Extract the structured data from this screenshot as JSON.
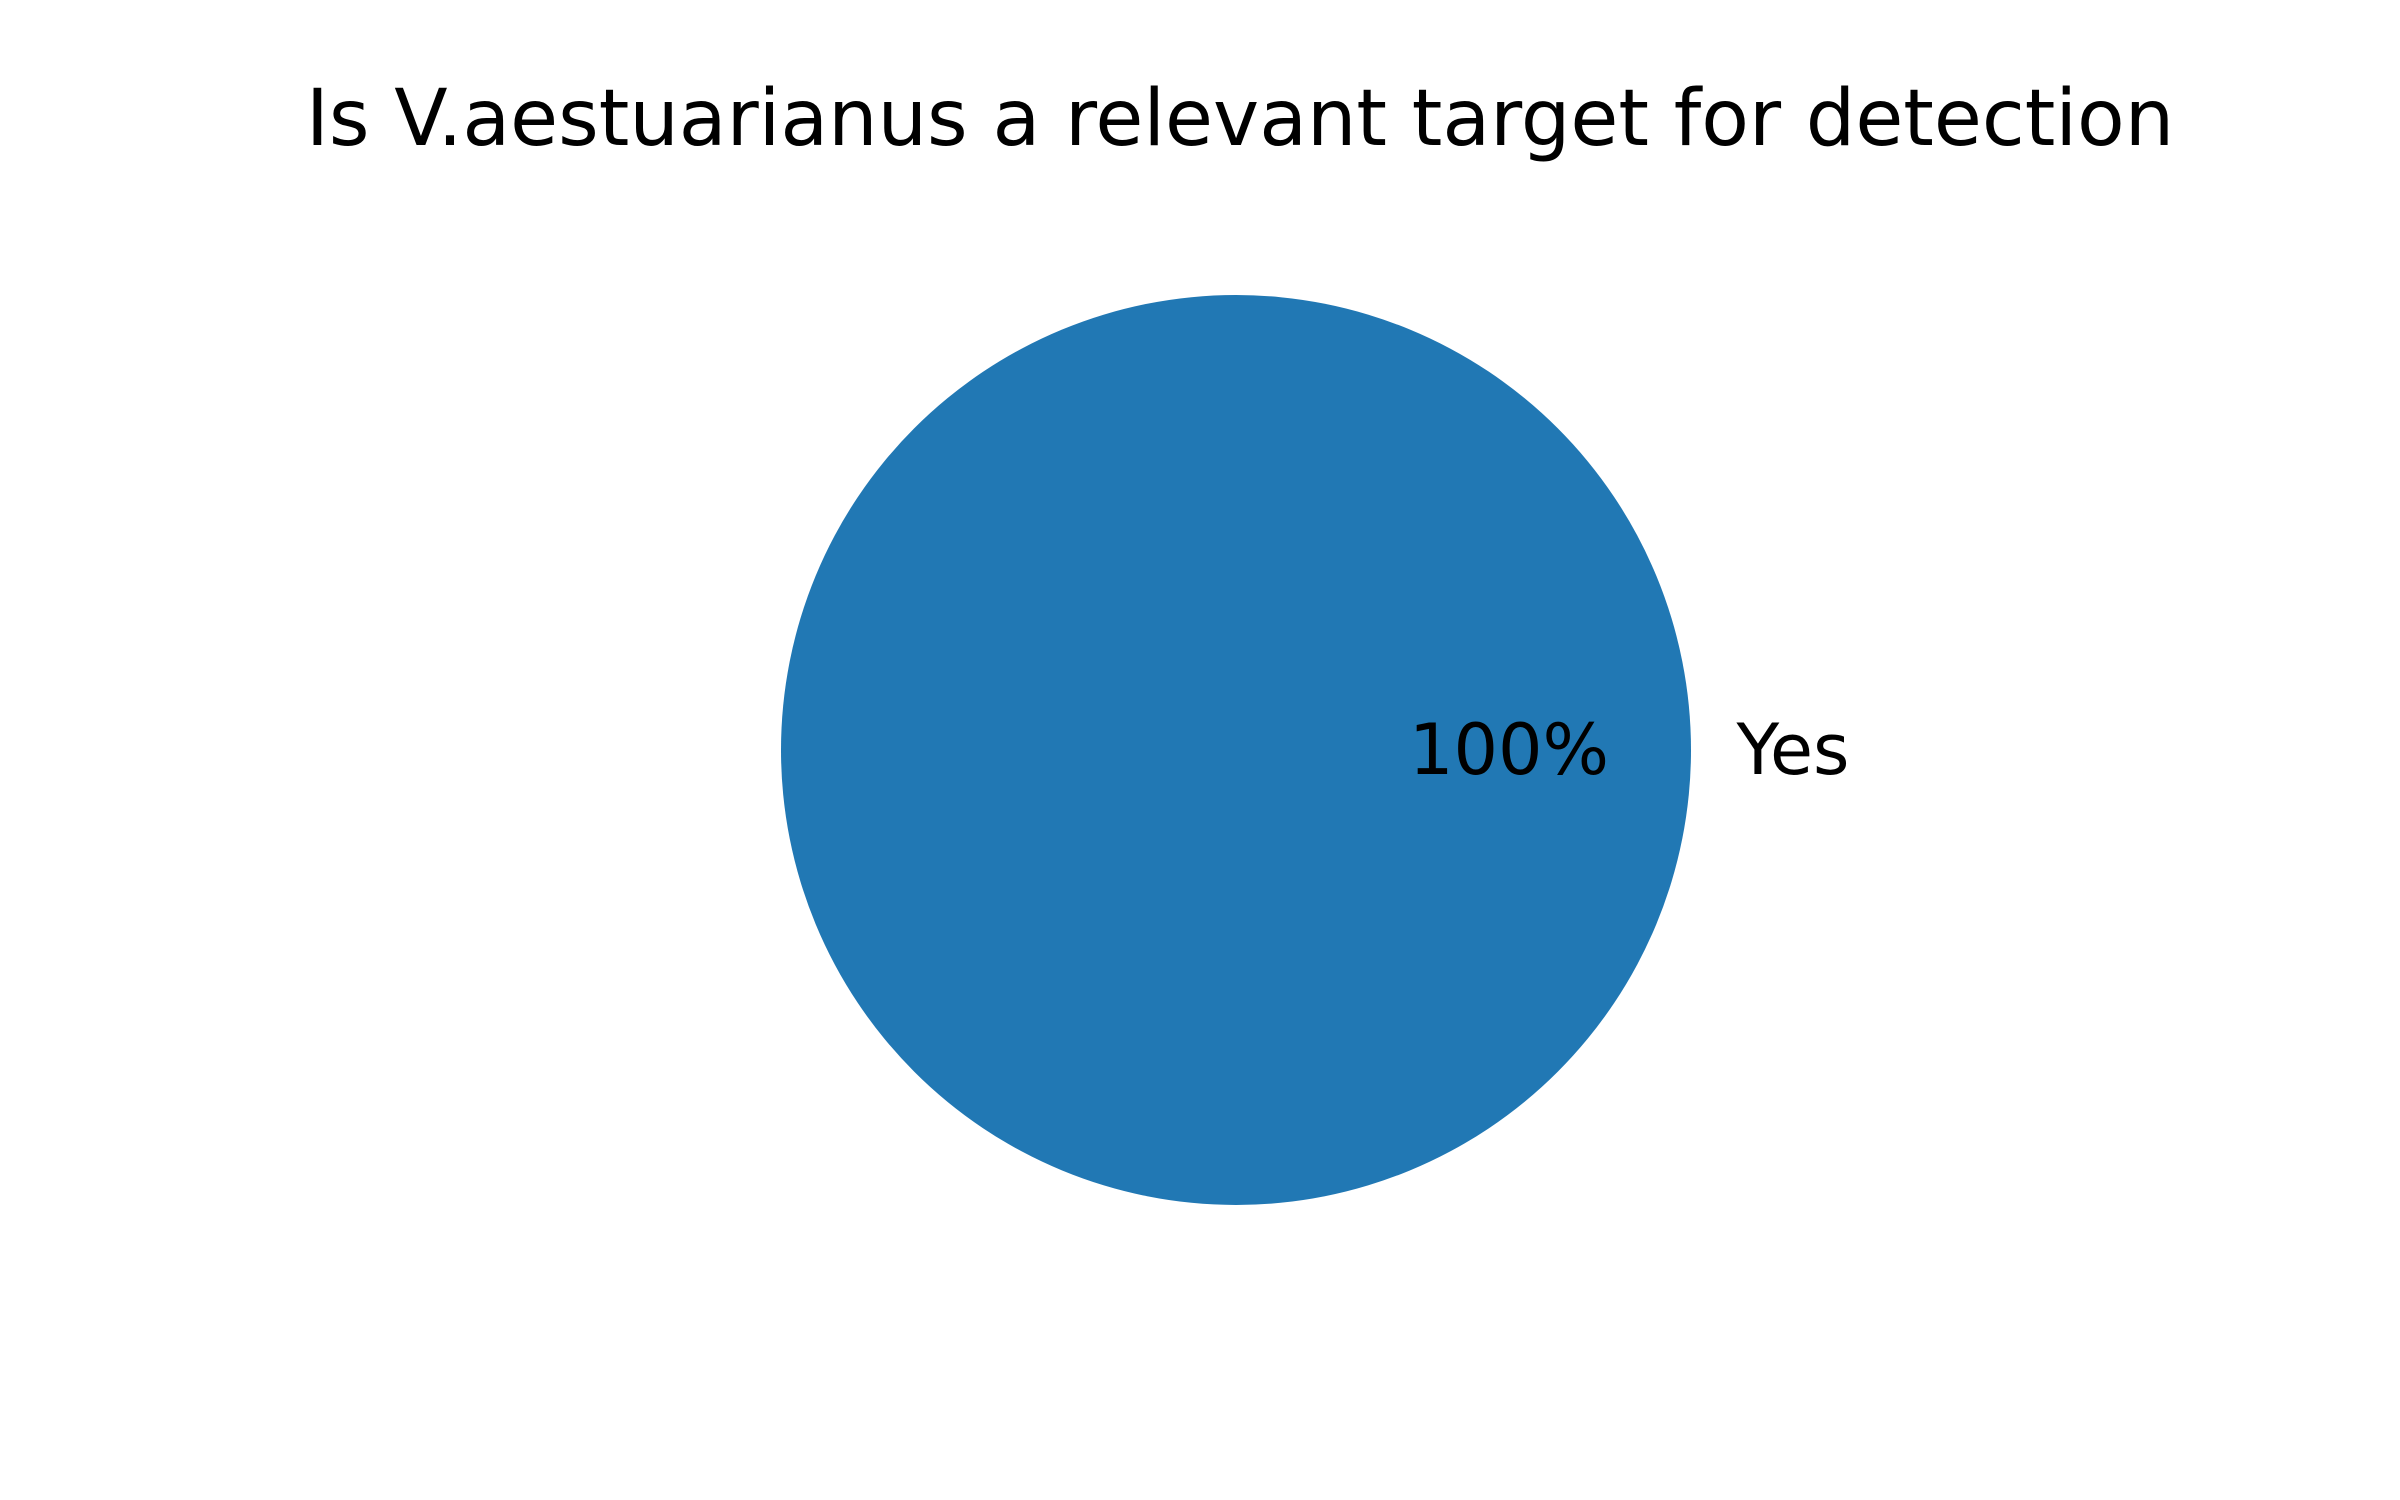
{
  "chart_data": {
    "type": "pie",
    "title": "Is V.aestuarianus a relevant target for detection",
    "labels": [
      "Yes"
    ],
    "values": [
      100
    ],
    "percent_labels": [
      "100%"
    ],
    "colors": [
      "#2178b4"
    ],
    "legend": "none"
  }
}
